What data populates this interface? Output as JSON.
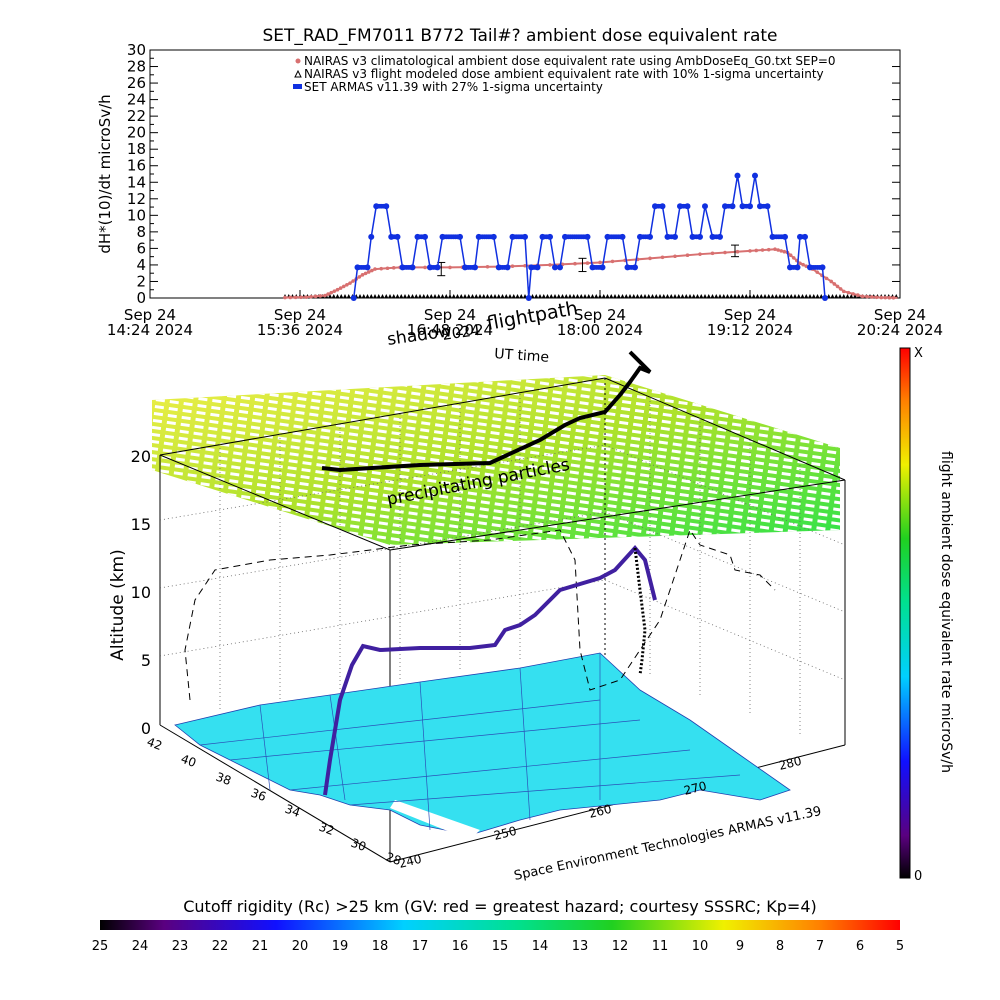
{
  "figure_title": "SET_RAD_FM7011  B772 Tail#? ambient dose equivalent rate",
  "chart_data": [
    {
      "type": "line",
      "title": "SET_RAD_FM7011  B772 Tail#? ambient dose equivalent rate",
      "ylabel": "dH*(10)/dt microSv/h",
      "xlabel": "",
      "ylim": [
        0,
        30
      ],
      "yticks": [
        0,
        2,
        4,
        6,
        8,
        10,
        12,
        14,
        16,
        18,
        20,
        22,
        24,
        26,
        28,
        30
      ],
      "x_unit": "hours since 14:24 2024-09-24",
      "xlim": [
        0,
        6
      ],
      "xticks": [
        {
          "x": 0.0,
          "l1": "Sep 24",
          "l2": "14:24 2024"
        },
        {
          "x": 1.2,
          "l1": "Sep 24",
          "l2": "15:36 2024"
        },
        {
          "x": 2.4,
          "l1": "Sep 24",
          "l2": "16:48 2024"
        },
        {
          "x": 3.6,
          "l1": "Sep 24",
          "l2": "18:00 2024"
        },
        {
          "x": 4.8,
          "l1": "Sep 24",
          "l2": "19:12 2024"
        },
        {
          "x": 6.0,
          "l1": "Sep 24",
          "l2": "20:24 2024"
        }
      ],
      "legend_position": "top-right",
      "series": [
        {
          "name": "NAIRAS v3 climatological ambient dose equivalent rate using AmbDoseEq_G0.txt SEP=0",
          "color": "#d87070",
          "marker": "small-circle",
          "points": [
            [
              1.08,
              0.05
            ],
            [
              1.25,
              0.1
            ],
            [
              1.4,
              0.3
            ],
            [
              1.5,
              1.0
            ],
            [
              1.6,
              1.8
            ],
            [
              1.7,
              2.8
            ],
            [
              1.8,
              3.5
            ],
            [
              2.0,
              3.7
            ],
            [
              2.4,
              3.7
            ],
            [
              2.8,
              3.8
            ],
            [
              3.2,
              4.0
            ],
            [
              3.6,
              4.3
            ],
            [
              4.0,
              4.8
            ],
            [
              4.4,
              5.3
            ],
            [
              4.8,
              5.7
            ],
            [
              5.0,
              5.9
            ],
            [
              5.1,
              5.5
            ],
            [
              5.2,
              4.2
            ],
            [
              5.3,
              3.5
            ],
            [
              5.45,
              2.0
            ],
            [
              5.55,
              0.8
            ],
            [
              5.7,
              0.2
            ],
            [
              5.85,
              0.05
            ],
            [
              5.98,
              0.02
            ]
          ]
        },
        {
          "name": "NAIRAS v3 flight modeled dose ambient equivalent rate with 10% 1-sigma uncertainty",
          "color": "#000000",
          "marker": "triangle",
          "errorbars": [
            {
              "x": 2.33,
              "y": 3.5,
              "err": 0.8
            },
            {
              "x": 3.46,
              "y": 4.0,
              "err": 0.8
            },
            {
              "x": 4.68,
              "y": 5.7,
              "err": 0.7
            }
          ]
        },
        {
          "name": "SET ARMAS v11.39 with 27% 1-sigma uncertainty",
          "color": "#1030e0",
          "marker": "filled-circle",
          "points": [
            [
              1.63,
              0.0
            ],
            [
              1.66,
              3.7
            ],
            [
              1.74,
              3.7
            ],
            [
              1.77,
              7.4
            ],
            [
              1.81,
              11.1
            ],
            [
              1.89,
              11.1
            ],
            [
              1.93,
              7.4
            ],
            [
              1.98,
              7.4
            ],
            [
              2.02,
              3.7
            ],
            [
              2.1,
              3.7
            ],
            [
              2.14,
              7.4
            ],
            [
              2.2,
              7.4
            ],
            [
              2.24,
              3.7
            ],
            [
              2.3,
              3.7
            ],
            [
              2.34,
              7.4
            ],
            [
              2.48,
              7.4
            ],
            [
              2.52,
              3.7
            ],
            [
              2.6,
              3.7
            ],
            [
              2.63,
              7.4
            ],
            [
              2.75,
              7.4
            ],
            [
              2.79,
              3.7
            ],
            [
              2.86,
              3.7
            ],
            [
              2.9,
              7.4
            ],
            [
              3.0,
              7.4
            ],
            [
              3.03,
              0.0
            ],
            [
              3.05,
              3.7
            ],
            [
              3.1,
              3.7
            ],
            [
              3.14,
              7.4
            ],
            [
              3.2,
              7.4
            ],
            [
              3.24,
              3.7
            ],
            [
              3.28,
              3.7
            ],
            [
              3.32,
              7.4
            ],
            [
              3.5,
              7.4
            ],
            [
              3.54,
              3.7
            ],
            [
              3.62,
              3.7
            ],
            [
              3.66,
              7.4
            ],
            [
              3.78,
              7.4
            ],
            [
              3.82,
              3.7
            ],
            [
              3.88,
              3.7
            ],
            [
              3.92,
              7.4
            ],
            [
              4.0,
              7.4
            ],
            [
              4.04,
              11.1
            ],
            [
              4.1,
              11.1
            ],
            [
              4.14,
              7.4
            ],
            [
              4.2,
              7.4
            ],
            [
              4.24,
              11.1
            ],
            [
              4.3,
              11.1
            ],
            [
              4.34,
              7.4
            ],
            [
              4.4,
              7.4
            ],
            [
              4.44,
              11.1
            ],
            [
              4.5,
              7.4
            ],
            [
              4.56,
              7.4
            ],
            [
              4.6,
              11.1
            ],
            [
              4.66,
              11.1
            ],
            [
              4.7,
              14.8
            ],
            [
              4.74,
              11.1
            ],
            [
              4.8,
              11.1
            ],
            [
              4.84,
              14.8
            ],
            [
              4.88,
              11.1
            ],
            [
              4.94,
              11.1
            ],
            [
              4.98,
              7.4
            ],
            [
              5.08,
              7.4
            ],
            [
              5.12,
              3.7
            ],
            [
              5.18,
              3.7
            ],
            [
              5.2,
              7.4
            ],
            [
              5.24,
              7.4
            ],
            [
              5.28,
              3.7
            ],
            [
              5.38,
              3.7
            ],
            [
              5.4,
              0.0
            ]
          ]
        }
      ]
    },
    {
      "type": "3d-trajectory",
      "top_labels": [
        "shadow",
        "2024",
        "flightpath",
        "UT time"
      ],
      "plane_label": "precipitating particles",
      "ylabel": "Altitude (km)",
      "zticks": [
        0,
        5,
        10,
        15,
        20
      ],
      "lat_ticks": [
        28,
        30,
        32,
        34,
        36,
        38,
        40,
        42
      ],
      "lon_ticks": [
        240,
        250,
        260,
        270,
        280
      ],
      "credit": "Space Environment Technologies ARMAS v11.39",
      "right_colorbar": {
        "label": "flight ambient dose equivalent rate microSv/h",
        "top_label": "X",
        "bottom_label": "0"
      }
    },
    {
      "type": "colorbar",
      "title": "Cutoff rigidity (Rc) >25 km (GV: red = greatest hazard; courtesy SSSRC; Kp=4)",
      "ticks": [
        25,
        24,
        23,
        22,
        21,
        20,
        19,
        18,
        17,
        16,
        15,
        14,
        13,
        12,
        11,
        10,
        9,
        8,
        7,
        6,
        5
      ]
    }
  ]
}
